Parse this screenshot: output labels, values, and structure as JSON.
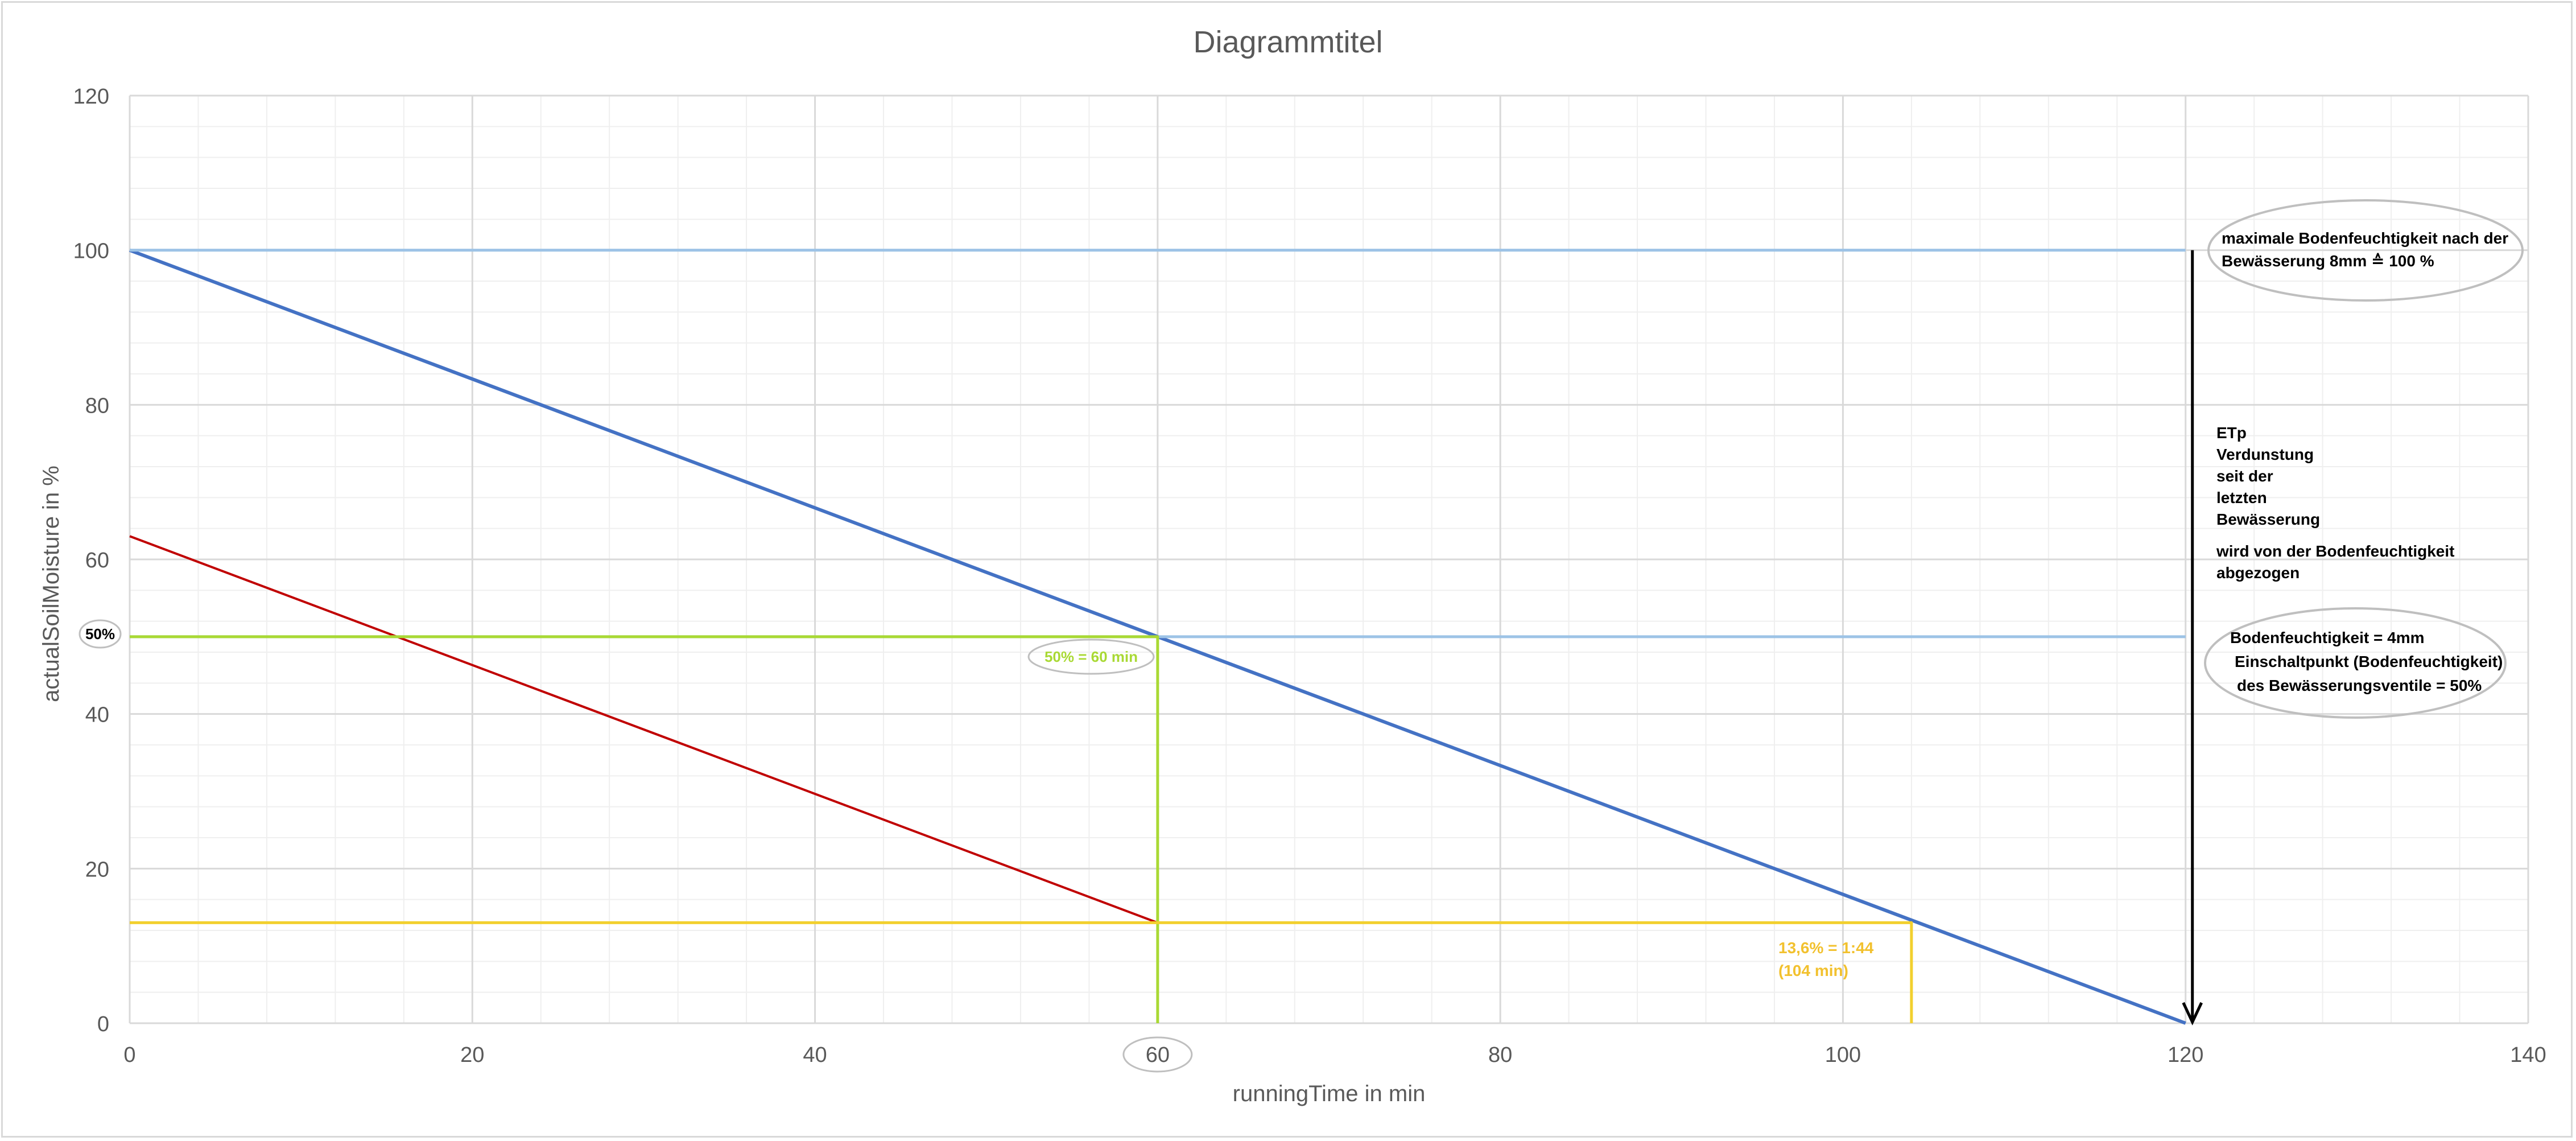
{
  "chart_data": {
    "type": "line",
    "title": "Diagrammtitel",
    "xlabel": "runningTime in min",
    "ylabel": "actualSoilMoisture in %",
    "xlim": [
      0,
      140
    ],
    "ylim": [
      0,
      120
    ],
    "xticks": [
      "0",
      "20",
      "40",
      "60",
      "80",
      "100",
      "120",
      "140"
    ],
    "yticks": [
      "0",
      "20",
      "40",
      "60",
      "80",
      "100",
      "120"
    ],
    "grid": true,
    "series": [
      {
        "color": "#4472c4",
        "x": [
          0,
          120
        ],
        "y": [
          100,
          0
        ]
      },
      {
        "color": "#c00000",
        "x": [
          0,
          60
        ],
        "y": [
          63,
          13
        ]
      },
      {
        "color": "#9dc3e6",
        "x": [
          0,
          120
        ],
        "y": [
          100,
          100
        ]
      },
      {
        "color": "#9dc3e6",
        "x": [
          0,
          120
        ],
        "y": [
          50,
          50
        ]
      },
      {
        "color": "#a9d934",
        "x": [
          0,
          60,
          60
        ],
        "y": [
          50,
          50,
          0
        ]
      },
      {
        "color": "#f2d02e",
        "x": [
          0,
          104,
          104
        ],
        "y": [
          13,
          13,
          0
        ]
      }
    ],
    "annotations": {
      "max_note": [
        "maximale Bodenfeuchtigkeit nach der",
        "Bewässerung 8mm ≙ 100 %"
      ],
      "etp_note": [
        "ETp",
        "Verdunstung",
        "seit der",
        "letzten",
        "Bewässerung",
        "wird von der Bodenfeuchtigkeit",
        "abgezogen"
      ],
      "switch_note": [
        "Bodenfeuchtigkeit = 4mm",
        "Einschaltpunkt (Bodenfeuchtigkeit)",
        "des Bewässerungsventile = 50%"
      ],
      "fifty_label": "50%",
      "green_label": "50% = 60 min",
      "yellow_label": [
        "13,6% = 1:44",
        "(104 min)"
      ]
    }
  }
}
